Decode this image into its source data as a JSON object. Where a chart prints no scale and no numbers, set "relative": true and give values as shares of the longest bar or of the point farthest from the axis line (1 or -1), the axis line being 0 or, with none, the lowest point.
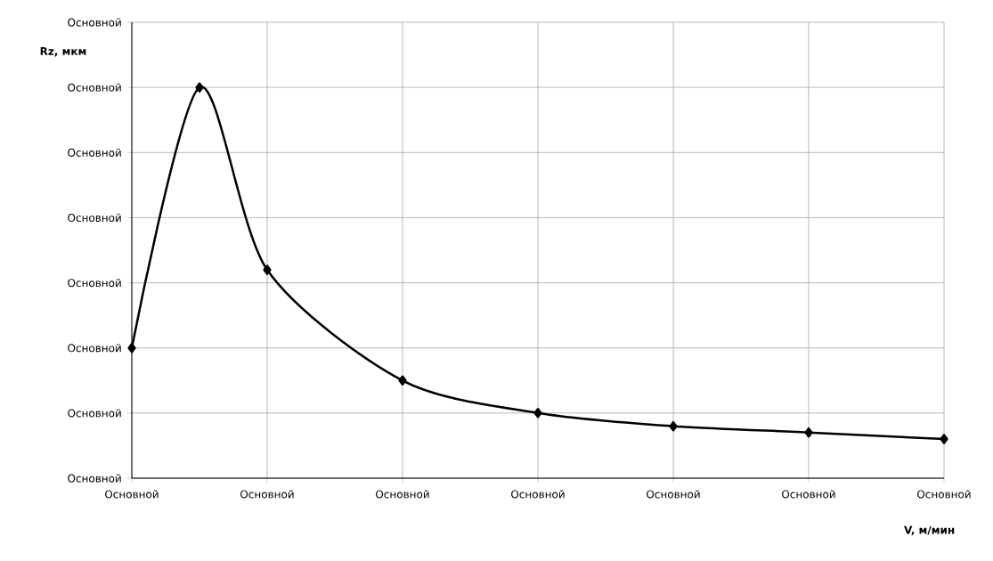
{
  "chart_data": {
    "type": "line",
    "xlabel": "V, м/мин",
    "ylabel": "Rz, мкм",
    "relative": true,
    "categories": [
      "Основной",
      null,
      "Основной",
      null,
      "Основной",
      null,
      "Основной",
      null,
      "Основной",
      null,
      "Основной",
      null,
      "Основной"
    ],
    "series": [
      {
        "color": "#000000",
        "values": [
          0.333,
          1,
          0.533,
          null,
          0.25,
          null,
          0.167,
          null,
          0.133,
          null,
          0.117,
          null,
          0.1
        ]
      }
    ],
    "annotations": [
      "Основной",
      "Основной",
      "Основной",
      "Основной",
      "Основной",
      "Основной",
      "Основной",
      "Основной"
    ],
    "grid": true,
    "marker": "diamond",
    "line_style": "solid"
  }
}
